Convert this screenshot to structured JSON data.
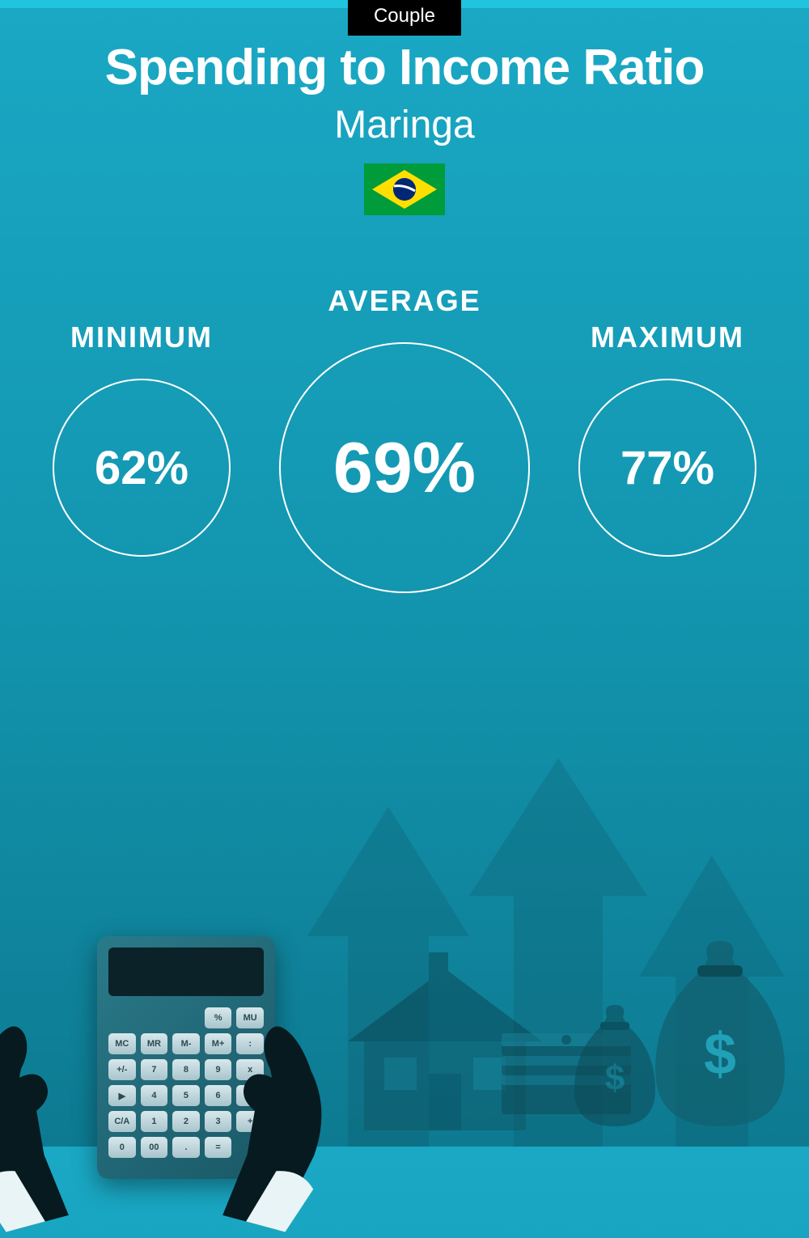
{
  "badge": "Couple",
  "title": "Spending to Income Ratio",
  "subtitle": "Maringa",
  "flag": {
    "bg": "#009b3a",
    "diamond": "#fedf00",
    "circle": "#002776"
  },
  "stats": {
    "minimum": {
      "label": "MINIMUM",
      "value": "62%"
    },
    "average": {
      "label": "AVERAGE",
      "value": "69%"
    },
    "maximum": {
      "label": "MAXIMUM",
      "value": "77%"
    }
  },
  "colors": {
    "bg_top": "#1aa8c4",
    "bg_bottom": "#0d7a91",
    "badge_bg": "#000000",
    "text": "#ffffff",
    "circle_border": "#ffffff",
    "illustration_dark": "#08303a",
    "illustration_mid": "#146578",
    "arrow_fill": "#0e5565"
  },
  "calculator": {
    "keys": [
      "%",
      "MU",
      "MC",
      "MR",
      "M-",
      "M+",
      ":",
      "+/-",
      "7",
      "8",
      "9",
      "x",
      "▶",
      "4",
      "5",
      "6",
      "-",
      "C/A",
      "1",
      "2",
      "3",
      "+",
      "0",
      "00",
      ".",
      "="
    ]
  }
}
